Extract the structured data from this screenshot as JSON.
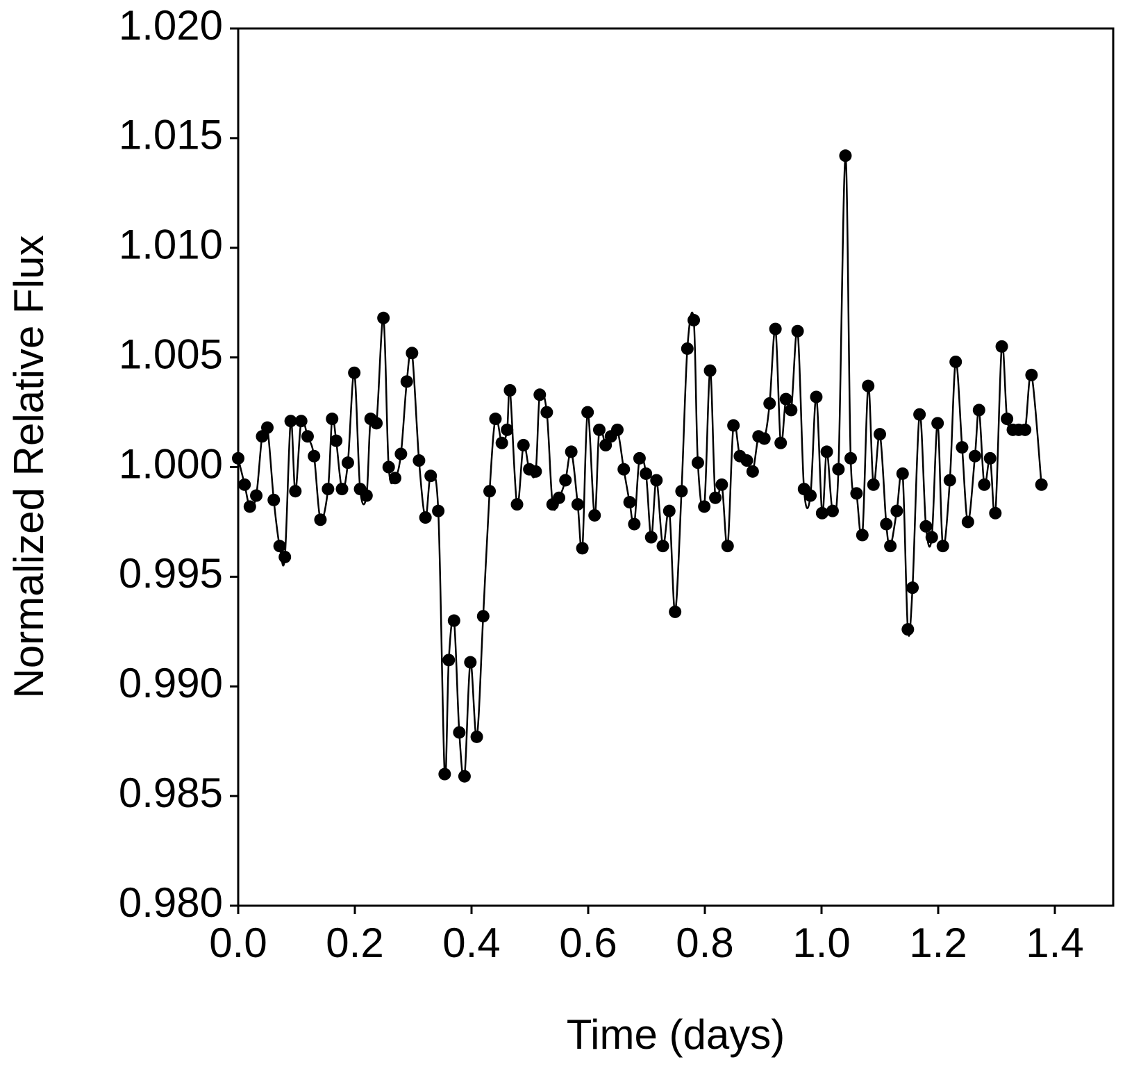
{
  "chart_data": {
    "type": "line",
    "markers": true,
    "color": "#000000",
    "xlabel": "Time (days)",
    "ylabel": "Normalized Relative Flux",
    "xlim": [
      0,
      1.5
    ],
    "ylim": [
      0.98,
      1.02
    ],
    "xticks": [
      {
        "value": 0,
        "label": "0.0"
      },
      {
        "value": 0.2,
        "label": "0.2"
      },
      {
        "value": 0.4,
        "label": "0.4"
      },
      {
        "value": 0.6,
        "label": "0.6"
      },
      {
        "value": 0.8,
        "label": "0.8"
      },
      {
        "value": 1,
        "label": "1.0"
      },
      {
        "value": 1.2,
        "label": "1.2"
      },
      {
        "value": 1.4,
        "label": "1.4"
      }
    ],
    "yticks": [
      {
        "value": 0.98,
        "label": "0.980"
      },
      {
        "value": 0.985,
        "label": "0.985"
      },
      {
        "value": 0.99,
        "label": "0.990"
      },
      {
        "value": 0.995,
        "label": "0.995"
      },
      {
        "value": 1,
        "label": "1.000"
      },
      {
        "value": 1.005,
        "label": "1.005"
      },
      {
        "value": 1.01,
        "label": "1.010"
      },
      {
        "value": 1.015,
        "label": "1.015"
      },
      {
        "value": 1.02,
        "label": "1.020"
      }
    ],
    "x": [
      0.0,
      0.011,
      0.02,
      0.031,
      0.041,
      0.05,
      0.061,
      0.071,
      0.08,
      0.09,
      0.098,
      0.108,
      0.119,
      0.13,
      0.141,
      0.154,
      0.161,
      0.168,
      0.178,
      0.188,
      0.199,
      0.209,
      0.22,
      0.227,
      0.237,
      0.249,
      0.258,
      0.269,
      0.279,
      0.289,
      0.298,
      0.31,
      0.321,
      0.33,
      0.343,
      0.354,
      0.361,
      0.37,
      0.379,
      0.388,
      0.398,
      0.409,
      0.42,
      0.431,
      0.441,
      0.452,
      0.461,
      0.466,
      0.478,
      0.489,
      0.499,
      0.51,
      0.517,
      0.529,
      0.539,
      0.55,
      0.561,
      0.571,
      0.582,
      0.59,
      0.599,
      0.611,
      0.619,
      0.63,
      0.639,
      0.65,
      0.661,
      0.671,
      0.679,
      0.688,
      0.699,
      0.708,
      0.717,
      0.728,
      0.739,
      0.749,
      0.76,
      0.77,
      0.781,
      0.788,
      0.799,
      0.809,
      0.818,
      0.829,
      0.839,
      0.849,
      0.86,
      0.872,
      0.882,
      0.892,
      0.902,
      0.911,
      0.921,
      0.93,
      0.939,
      0.948,
      0.959,
      0.97,
      0.981,
      0.991,
      1.001,
      1.009,
      1.019,
      1.029,
      1.041,
      1.05,
      1.06,
      1.07,
      1.08,
      1.089,
      1.1,
      1.111,
      1.118,
      1.129,
      1.139,
      1.148,
      1.156,
      1.168,
      1.179,
      1.189,
      1.199,
      1.208,
      1.22,
      1.23,
      1.241,
      1.251,
      1.263,
      1.27,
      1.279,
      1.289,
      1.298,
      1.309,
      1.318,
      1.328,
      1.338,
      1.349,
      1.36,
      1.377
    ],
    "values": [
      1.0004,
      0.9992,
      0.9982,
      0.9987,
      1.0014,
      1.0018,
      0.9985,
      0.9964,
      0.9959,
      1.0021,
      0.9989,
      1.0021,
      1.0014,
      1.0005,
      0.9976,
      0.999,
      1.0022,
      1.0012,
      0.999,
      1.0002,
      1.0043,
      0.999,
      0.9987,
      1.0022,
      1.002,
      1.0068,
      1.0,
      0.9995,
      1.0006,
      1.0039,
      1.0052,
      1.0003,
      0.9977,
      0.9996,
      0.998,
      0.986,
      0.9912,
      0.993,
      0.9879,
      0.9859,
      0.9911,
      0.9877,
      0.9932,
      0.9989,
      1.0022,
      1.0011,
      1.0017,
      1.0035,
      0.9983,
      1.001,
      0.9999,
      0.9998,
      1.0033,
      1.0025,
      0.9983,
      0.9986,
      0.9994,
      1.0007,
      0.9983,
      0.9963,
      1.0025,
      0.9978,
      1.0017,
      1.001,
      1.0014,
      1.0017,
      0.9999,
      0.9984,
      0.9974,
      1.0004,
      0.9997,
      0.9968,
      0.9994,
      0.9964,
      0.998,
      0.9934,
      0.9989,
      1.0054,
      1.0067,
      1.0002,
      0.9982,
      1.0044,
      0.9986,
      0.9992,
      0.9964,
      1.0019,
      1.0005,
      1.0003,
      0.9998,
      1.0014,
      1.0013,
      1.0029,
      1.0063,
      1.0011,
      1.0031,
      1.0026,
      1.0062,
      0.999,
      0.9987,
      1.0032,
      0.9979,
      1.0007,
      0.998,
      0.9999,
      1.0142,
      1.0004,
      0.9988,
      0.9969,
      1.0037,
      0.9992,
      1.0015,
      0.9974,
      0.9964,
      0.998,
      0.9997,
      0.9926,
      0.9945,
      1.0024,
      0.9973,
      0.9968,
      1.002,
      0.9964,
      0.9994,
      1.0048,
      1.0009,
      0.9975,
      1.0005,
      1.0026,
      0.9992,
      1.0004,
      0.9979,
      1.0055,
      1.0022,
      1.0017,
      1.0017,
      1.0017,
      1.0042,
      0.9992
    ]
  }
}
